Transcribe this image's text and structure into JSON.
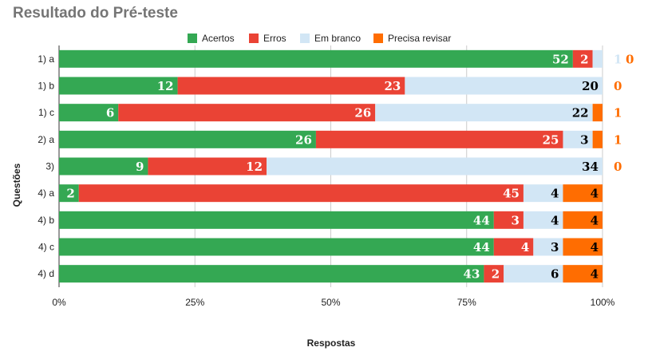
{
  "chart_data": {
    "type": "bar",
    "orientation": "horizontal",
    "stacking": "percent",
    "title": "Resultado do Pré-teste",
    "xlabel": "Respostas",
    "ylabel": "Questões",
    "xlim": [
      0,
      100
    ],
    "x_ticks": [
      "0%",
      "25%",
      "50%",
      "75%",
      "100%"
    ],
    "grid": true,
    "legend_position": "top",
    "categories": [
      "1) a",
      "1) b",
      "1) c",
      "2) a",
      "3)",
      "4) a",
      "4) b",
      "4) c",
      "4) d"
    ],
    "series": [
      {
        "name": "Acertos",
        "color": "#34a853",
        "label_color": "#ffffff",
        "values": [
          52,
          12,
          6,
          26,
          9,
          2,
          44,
          44,
          43
        ]
      },
      {
        "name": "Erros",
        "color": "#ea4335",
        "label_color": "#ffffff",
        "values": [
          2,
          23,
          26,
          25,
          12,
          45,
          3,
          4,
          2
        ]
      },
      {
        "name": "Em branco",
        "color": "#d2e6f5",
        "label_color": "#000000",
        "values": [
          1,
          20,
          22,
          3,
          34,
          4,
          4,
          3,
          6
        ]
      },
      {
        "name": "Precisa revisar",
        "color": "#ff6d01",
        "label_color": "#000000",
        "values": [
          0,
          0,
          1,
          1,
          0,
          4,
          4,
          4,
          4
        ]
      }
    ]
  }
}
